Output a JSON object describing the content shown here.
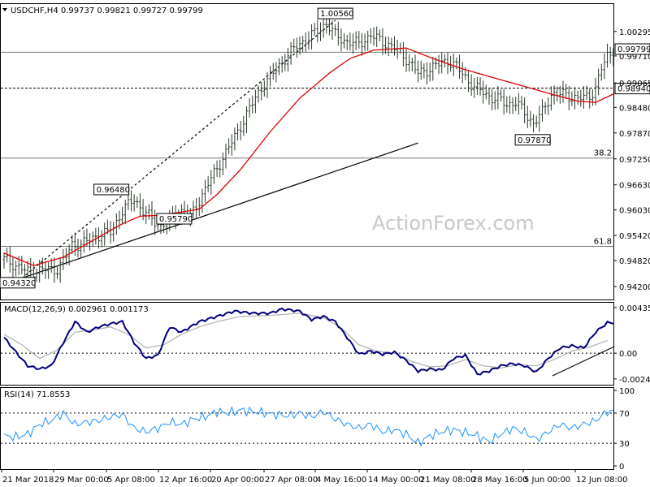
{
  "chart_data": [
    {
      "type": "candlestick",
      "title": "USDCHF,H4  0.99737 0.99821 0.99727 0.99799",
      "current_price_label": "0.99799",
      "ylim": [
        0.9389,
        1.0095
      ],
      "yticks": [
        "1.00295",
        "0.99710",
        "0.99065",
        "0.98480",
        "0.97870",
        "0.97250",
        "0.96630",
        "0.96030",
        "0.95420",
        "0.94820",
        "0.94200"
      ],
      "x_labels": [
        "21 Mar 2018",
        "29 Mar 00:00",
        "5 Apr 08:00",
        "12 Apr 16:00",
        "20 Apr 00:00",
        "27 Apr 08:00",
        "4 May 16:00",
        "14 May 00:00",
        "21 May 08:00",
        "28 May 16:00",
        "5 Jun 00:00",
        "12 Jun 08:00"
      ],
      "price_path": [
        [
          0,
          0.9485
        ],
        [
          4,
          0.947
        ],
        [
          8,
          0.9455
        ],
        [
          13,
          0.946
        ],
        [
          18,
          0.9462
        ],
        [
          20,
          0.948
        ],
        [
          23,
          0.952
        ],
        [
          26,
          0.952
        ],
        [
          31,
          0.954
        ],
        [
          36,
          0.955
        ],
        [
          40,
          0.96
        ],
        [
          44,
          0.963
        ],
        [
          47,
          0.96
        ],
        [
          51,
          0.9575
        ],
        [
          53,
          0.9565
        ],
        [
          56,
          0.958
        ],
        [
          60,
          0.96
        ],
        [
          63,
          0.9585
        ],
        [
          67,
          0.964
        ],
        [
          71,
          0.969
        ],
        [
          75,
          0.974
        ],
        [
          79,
          0.979
        ],
        [
          83,
          0.9845
        ],
        [
          87,
          0.9895
        ],
        [
          91,
          0.993
        ],
        [
          95,
          0.9965
        ],
        [
          99,
          0.9995
        ],
        [
          102,
          1.001
        ],
        [
          106,
          1.003
        ],
        [
          109,
          1.005
        ],
        [
          112,
          1.002
        ],
        [
          116,
          1.0005
        ],
        [
          120,
          1.0
        ],
        [
          124,
          1.002
        ],
        [
          128,
          1.0005
        ],
        [
          132,
          0.999
        ],
        [
          136,
          0.9965
        ],
        [
          140,
          0.993
        ],
        [
          144,
          0.994
        ],
        [
          148,
          0.9955
        ],
        [
          150,
          0.996
        ],
        [
          153,
          0.9945
        ],
        [
          156,
          0.992
        ],
        [
          159,
          0.9895
        ],
        [
          162,
          0.9885
        ],
        [
          165,
          0.987
        ],
        [
          168,
          0.9865
        ],
        [
          170,
          0.9855
        ],
        [
          173,
          0.986
        ],
        [
          176,
          0.9835
        ],
        [
          179,
          0.981
        ],
        [
          182,
          0.9835
        ],
        [
          185,
          0.988
        ],
        [
          188,
          0.988
        ],
        [
          191,
          0.9875
        ],
        [
          194,
          0.987
        ],
        [
          196,
          0.987
        ],
        [
          198,
          0.9875
        ],
        [
          200,
          0.9895
        ],
        [
          202,
          0.994
        ],
        [
          204,
          0.997
        ],
        [
          206,
          0.998
        ]
      ],
      "ma_path": [
        [
          0,
          0.95
        ],
        [
          10,
          0.947
        ],
        [
          20,
          0.949
        ],
        [
          30,
          0.953
        ],
        [
          40,
          0.957
        ],
        [
          46,
          0.9588
        ],
        [
          52,
          0.959
        ],
        [
          60,
          0.9598
        ],
        [
          66,
          0.9605
        ],
        [
          72,
          0.964
        ],
        [
          80,
          0.97
        ],
        [
          90,
          0.979
        ],
        [
          100,
          0.987
        ],
        [
          110,
          0.993
        ],
        [
          117,
          0.9965
        ],
        [
          125,
          0.9985
        ],
        [
          136,
          0.999
        ],
        [
          145,
          0.9965
        ],
        [
          155,
          0.994
        ],
        [
          165,
          0.992
        ],
        [
          175,
          0.99
        ],
        [
          185,
          0.988
        ],
        [
          194,
          0.9863
        ],
        [
          200,
          0.986
        ],
        [
          206,
          0.988
        ]
      ],
      "annotations": [
        {
          "text": "1.00560",
          "bar": 112,
          "price": 1.0056
        },
        {
          "text": "0.96480",
          "bar": 40,
          "price": 0.9648
        },
        {
          "text": "0.95790",
          "bar": 53,
          "price": 0.9579
        },
        {
          "text": "0.94320",
          "bar": 3,
          "price": 0.9432
        },
        {
          "text": "0.97870",
          "bar": 183,
          "price": 0.9787
        }
      ],
      "levels": [
        {
          "price": 0.99799,
          "style": "solid",
          "label": ""
        },
        {
          "price": 0.9894,
          "style": "dashed",
          "label": "0.98940"
        },
        {
          "price": 0.9727,
          "style": "solid",
          "label": "38.2"
        },
        {
          "price": 0.9516,
          "style": "solid",
          "label": "61.8"
        }
      ],
      "trendlines": [
        {
          "style": "dashed",
          "from": [
            6,
            0.944
          ],
          "to": [
            112,
            1.0056
          ]
        },
        {
          "style": "solid",
          "from": [
            6,
            0.944
          ],
          "to": [
            140,
            0.9763
          ]
        }
      ],
      "watermark": "ActionForex.com"
    },
    {
      "type": "line",
      "title": "MACD(12,26,9) 0.002961 0.001173",
      "ylim": [
        -0.003,
        0.0048
      ],
      "yticks": [
        "0.004351",
        "0.00",
        "-0.002448"
      ],
      "macd": [
        [
          0,
          0.0015
        ],
        [
          4,
          0.0001
        ],
        [
          8,
          -0.0012
        ],
        [
          12,
          -0.0015
        ],
        [
          16,
          -0.0012
        ],
        [
          20,
          0.001
        ],
        [
          24,
          0.003
        ],
        [
          28,
          0.002
        ],
        [
          32,
          0.0025
        ],
        [
          36,
          0.0028
        ],
        [
          40,
          0.003
        ],
        [
          44,
          0.001
        ],
        [
          48,
          -0.0005
        ],
        [
          52,
          -0.0002
        ],
        [
          56,
          0.0025
        ],
        [
          60,
          0.002
        ],
        [
          66,
          0.003
        ],
        [
          72,
          0.0035
        ],
        [
          78,
          0.004
        ],
        [
          84,
          0.0038
        ],
        [
          90,
          0.0038
        ],
        [
          94,
          0.0042
        ],
        [
          100,
          0.004
        ],
        [
          104,
          0.0032
        ],
        [
          108,
          0.0035
        ],
        [
          112,
          0.003
        ],
        [
          116,
          0.0015
        ],
        [
          120,
          -0.0001
        ],
        [
          124,
          0.0002
        ],
        [
          128,
          -0.0001
        ],
        [
          132,
          0.0001
        ],
        [
          136,
          -0.0007
        ],
        [
          140,
          -0.0017
        ],
        [
          144,
          -0.0015
        ],
        [
          148,
          -0.0016
        ],
        [
          152,
          -0.0005
        ],
        [
          156,
          -0.0002
        ],
        [
          160,
          -0.002
        ],
        [
          164,
          -0.0017
        ],
        [
          168,
          -0.0012
        ],
        [
          172,
          -0.001
        ],
        [
          176,
          -0.0012
        ],
        [
          180,
          -0.0018
        ],
        [
          184,
          -0.0005
        ],
        [
          188,
          0.0005
        ],
        [
          192,
          0.0007
        ],
        [
          196,
          0.0005
        ],
        [
          200,
          0.002
        ],
        [
          204,
          0.0029
        ]
      ],
      "signal": [
        [
          0,
          0.0018
        ],
        [
          6,
          0.0008
        ],
        [
          12,
          -0.0005
        ],
        [
          18,
          0.0003
        ],
        [
          24,
          0.002
        ],
        [
          30,
          0.0022
        ],
        [
          36,
          0.0025
        ],
        [
          42,
          0.0018
        ],
        [
          48,
          0.0005
        ],
        [
          54,
          0.0008
        ],
        [
          60,
          0.0018
        ],
        [
          66,
          0.0025
        ],
        [
          72,
          0.003
        ],
        [
          80,
          0.0035
        ],
        [
          90,
          0.0036
        ],
        [
          100,
          0.0038
        ],
        [
          108,
          0.0034
        ],
        [
          114,
          0.0024
        ],
        [
          120,
          0.0008
        ],
        [
          126,
          0.0002
        ],
        [
          132,
          0.0
        ],
        [
          138,
          -0.0008
        ],
        [
          144,
          -0.0013
        ],
        [
          150,
          -0.0012
        ],
        [
          156,
          -0.0006
        ],
        [
          162,
          -0.0012
        ],
        [
          168,
          -0.0014
        ],
        [
          174,
          -0.0011
        ],
        [
          180,
          -0.0012
        ],
        [
          186,
          -0.0006
        ],
        [
          192,
          0.0002
        ],
        [
          198,
          0.0006
        ],
        [
          204,
          0.0012
        ]
      ]
    },
    {
      "type": "line",
      "title": "RSI(14) 71.8553",
      "ylim": [
        0,
        100
      ],
      "yticks": [
        "100",
        "70",
        "30",
        "0"
      ],
      "rsi": [
        [
          0,
          40
        ],
        [
          4,
          38
        ],
        [
          8,
          42
        ],
        [
          12,
          55
        ],
        [
          16,
          60
        ],
        [
          20,
          70
        ],
        [
          24,
          55
        ],
        [
          28,
          58
        ],
        [
          32,
          60
        ],
        [
          36,
          65
        ],
        [
          40,
          68
        ],
        [
          44,
          50
        ],
        [
          48,
          45
        ],
        [
          52,
          50
        ],
        [
          56,
          58
        ],
        [
          60,
          55
        ],
        [
          64,
          62
        ],
        [
          68,
          65
        ],
        [
          72,
          72
        ],
        [
          76,
          70
        ],
        [
          80,
          74
        ],
        [
          84,
          72
        ],
        [
          88,
          70
        ],
        [
          92,
          68
        ],
        [
          96,
          66
        ],
        [
          100,
          70
        ],
        [
          104,
          65
        ],
        [
          108,
          72
        ],
        [
          112,
          62
        ],
        [
          116,
          55
        ],
        [
          120,
          50
        ],
        [
          124,
          55
        ],
        [
          128,
          45
        ],
        [
          132,
          48
        ],
        [
          136,
          42
        ],
        [
          140,
          30
        ],
        [
          144,
          40
        ],
        [
          148,
          45
        ],
        [
          152,
          48
        ],
        [
          156,
          44
        ],
        [
          160,
          40
        ],
        [
          164,
          32
        ],
        [
          168,
          42
        ],
        [
          172,
          50
        ],
        [
          176,
          45
        ],
        [
          180,
          35
        ],
        [
          184,
          45
        ],
        [
          188,
          55
        ],
        [
          192,
          50
        ],
        [
          196,
          55
        ],
        [
          200,
          60
        ],
        [
          204,
          72
        ]
      ]
    }
  ]
}
